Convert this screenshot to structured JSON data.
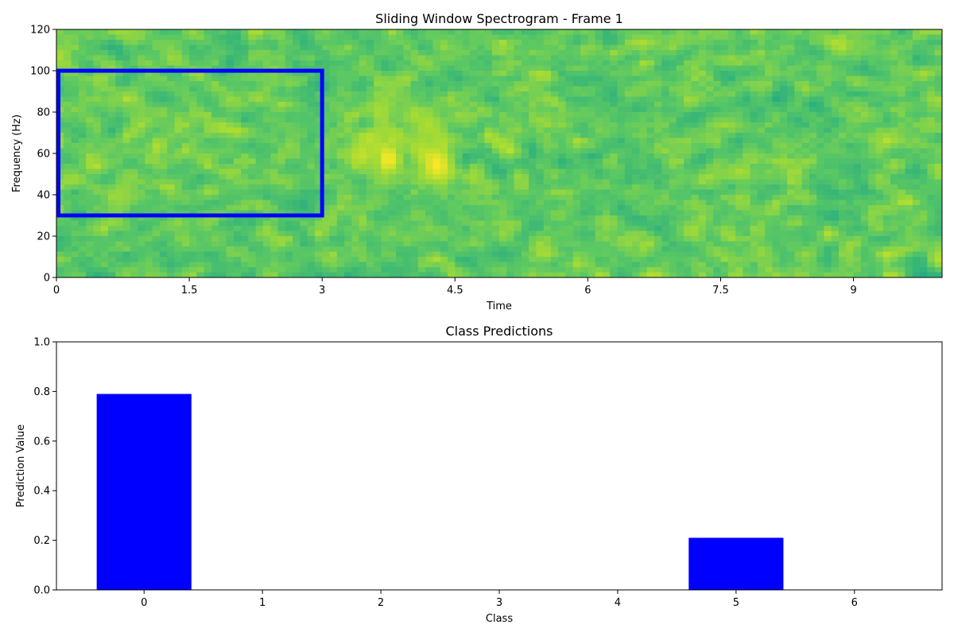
{
  "chart_data": [
    {
      "type": "heatmap",
      "title": "Sliding Window Spectrogram - Frame 1",
      "xlabel": "Time",
      "ylabel": "Frequency (Hz)",
      "xlim": [
        0,
        10
      ],
      "ylim": [
        0,
        120
      ],
      "xticks": [
        "0",
        "1.5",
        "3",
        "4.5",
        "6",
        "7.5",
        "9"
      ],
      "yticks": [
        "0",
        "20",
        "40",
        "60",
        "80",
        "100",
        "120"
      ],
      "colormap": "viridis",
      "background_level": 0.6,
      "hotspots": [
        {
          "time": 3.45,
          "freq": 60,
          "level": 0.85
        },
        {
          "time": 3.75,
          "freq": 57,
          "level": 1.0
        },
        {
          "time": 3.65,
          "freq": 80,
          "level": 0.8
        },
        {
          "time": 4.1,
          "freq": 63,
          "level": 0.8
        },
        {
          "time": 4.3,
          "freq": 55,
          "level": 1.0
        },
        {
          "time": 4.2,
          "freq": 74,
          "level": 0.8
        },
        {
          "time": 0.75,
          "freq": 42,
          "level": 0.75
        }
      ],
      "window": {
        "time_start": 0,
        "time_end": 3,
        "freq_low": 30,
        "freq_high": 100,
        "color": "#0000ff"
      }
    },
    {
      "type": "bar",
      "title": "Class Predictions",
      "xlabel": "Class",
      "ylabel": "Prediction Value",
      "categories": [
        "0",
        "1",
        "2",
        "3",
        "4",
        "5",
        "6"
      ],
      "values": [
        0.79,
        0,
        0,
        0,
        0,
        0.21,
        0
      ],
      "ylim": [
        0,
        1
      ],
      "yticks": [
        "0.0",
        "0.2",
        "0.4",
        "0.6",
        "0.8",
        "1.0"
      ],
      "bar_color": "#0000ff"
    }
  ]
}
